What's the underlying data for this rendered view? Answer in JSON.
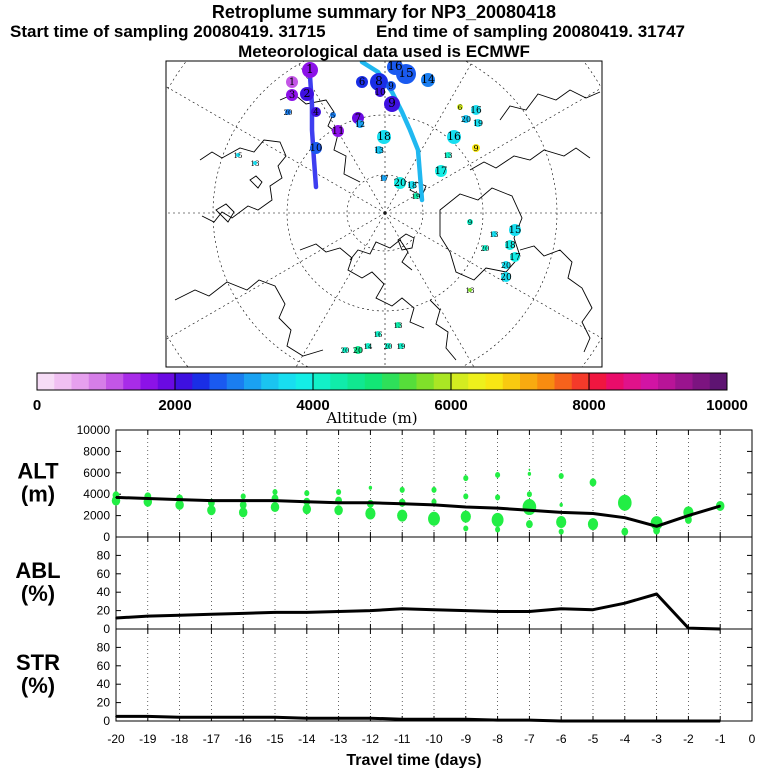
{
  "header": {
    "title": "Retroplume summary for NP3_20080418",
    "start_label": "Start time of sampling 20080419. 31715",
    "end_label": "End time of sampling 20080419. 31747",
    "met_label": "Meteorological data used is ECMWF"
  },
  "colorbar": {
    "ticks": [
      "0",
      "2000",
      "4000",
      "6000",
      "8000",
      "10000"
    ],
    "tick_values": [
      0,
      2000,
      4000,
      6000,
      8000,
      10000
    ],
    "label": "Altitude (m)",
    "colors": [
      "#f6dcf6",
      "#f0c0f2",
      "#e6a0ee",
      "#d67ee8",
      "#c356e6",
      "#a82ce8",
      "#8c12e8",
      "#6a0ae2",
      "#3e10e0",
      "#1a2ee6",
      "#1a5af0",
      "#1a7ef0",
      "#1aa2f2",
      "#1ac4f0",
      "#18def0",
      "#14eee6",
      "#12f0c8",
      "#10ecaa",
      "#10e890",
      "#12e676",
      "#2ee05a",
      "#56de3a",
      "#80e02a",
      "#aae624",
      "#d4ec20",
      "#eef01c",
      "#f8e614",
      "#f8ca10",
      "#f8aa10",
      "#f88c10",
      "#f6621c",
      "#f43a2a",
      "#f01640",
      "#ea0c6a",
      "#e0128a",
      "#d214a4",
      "#b81498",
      "#9a148e",
      "#7c1480",
      "#5e1472"
    ]
  },
  "map": {
    "description_labels": [
      "1",
      "2",
      "3",
      "4",
      "5",
      "6",
      "7",
      "8",
      "9",
      "10",
      "11",
      "12",
      "13",
      "14",
      "15",
      "16",
      "17",
      "18",
      "19",
      "20"
    ]
  },
  "chart_data": [
    {
      "type": "line",
      "panel": "ALT",
      "ylabel_line1": "ALT",
      "ylabel_line2": "(m)",
      "ylim": [
        0,
        10000
      ],
      "yticks": [
        "0",
        "2000",
        "4000",
        "6000",
        "8000",
        "10000"
      ],
      "ytick_values": [
        0,
        2000,
        4000,
        6000,
        8000,
        10000
      ],
      "x": [
        -20,
        -19,
        -18,
        -17,
        -16,
        -15,
        -14,
        -13,
        -12,
        -11,
        -10,
        -9,
        -8,
        -7,
        -6,
        -5,
        -4,
        -3,
        -2,
        -1
      ],
      "series": [
        {
          "name": "mean altitude",
          "values": [
            3700,
            3600,
            3500,
            3400,
            3400,
            3400,
            3300,
            3200,
            3200,
            3100,
            3000,
            2800,
            2700,
            2500,
            2300,
            2200,
            1800,
            1000,
            2000,
            2900
          ]
        }
      ],
      "scatter": [
        {
          "x": -20,
          "y": 3400,
          "s": 5
        },
        {
          "x": -20,
          "y": 3900,
          "s": 4
        },
        {
          "x": -19,
          "y": 3300,
          "s": 5
        },
        {
          "x": -19,
          "y": 3800,
          "s": 4
        },
        {
          "x": -18,
          "y": 3000,
          "s": 5
        },
        {
          "x": -18,
          "y": 3600,
          "s": 4
        },
        {
          "x": -17,
          "y": 2500,
          "s": 5
        },
        {
          "x": -17,
          "y": 3200,
          "s": 4
        },
        {
          "x": -16,
          "y": 2300,
          "s": 5
        },
        {
          "x": -16,
          "y": 3000,
          "s": 4
        },
        {
          "x": -16,
          "y": 3800,
          "s": 3
        },
        {
          "x": -15,
          "y": 2800,
          "s": 5
        },
        {
          "x": -15,
          "y": 3600,
          "s": 4
        },
        {
          "x": -15,
          "y": 4200,
          "s": 3
        },
        {
          "x": -14,
          "y": 2600,
          "s": 5
        },
        {
          "x": -14,
          "y": 3300,
          "s": 4
        },
        {
          "x": -14,
          "y": 4100,
          "s": 3
        },
        {
          "x": -13,
          "y": 2500,
          "s": 5
        },
        {
          "x": -13,
          "y": 3400,
          "s": 4
        },
        {
          "x": -13,
          "y": 4200,
          "s": 3
        },
        {
          "x": -12,
          "y": 2200,
          "s": 6
        },
        {
          "x": -12,
          "y": 3100,
          "s": 4
        },
        {
          "x": -12,
          "y": 4600,
          "s": 2
        },
        {
          "x": -11,
          "y": 2000,
          "s": 6
        },
        {
          "x": -11,
          "y": 3200,
          "s": 4
        },
        {
          "x": -11,
          "y": 4400,
          "s": 3
        },
        {
          "x": -10,
          "y": 1700,
          "s": 7
        },
        {
          "x": -10,
          "y": 3300,
          "s": 3
        },
        {
          "x": -10,
          "y": 4400,
          "s": 3
        },
        {
          "x": -9,
          "y": 1900,
          "s": 6
        },
        {
          "x": -9,
          "y": 800,
          "s": 3
        },
        {
          "x": -9,
          "y": 3800,
          "s": 3
        },
        {
          "x": -9,
          "y": 5500,
          "s": 3
        },
        {
          "x": -8,
          "y": 1600,
          "s": 7
        },
        {
          "x": -8,
          "y": 700,
          "s": 3
        },
        {
          "x": -8,
          "y": 3700,
          "s": 3
        },
        {
          "x": -8,
          "y": 5800,
          "s": 3
        },
        {
          "x": -7,
          "y": 2800,
          "s": 8
        },
        {
          "x": -7,
          "y": 1200,
          "s": 4
        },
        {
          "x": -7,
          "y": 4000,
          "s": 3
        },
        {
          "x": -7,
          "y": 5900,
          "s": 2
        },
        {
          "x": -7,
          "y": 6300,
          "s": 1
        },
        {
          "x": -6,
          "y": 1400,
          "s": 6
        },
        {
          "x": -6,
          "y": 500,
          "s": 3
        },
        {
          "x": -6,
          "y": 3000,
          "s": 2
        },
        {
          "x": -6,
          "y": 5700,
          "s": 3
        },
        {
          "x": -5,
          "y": 1200,
          "s": 6
        },
        {
          "x": -5,
          "y": 5100,
          "s": 4
        },
        {
          "x": -4,
          "y": 3200,
          "s": 8
        },
        {
          "x": -4,
          "y": 500,
          "s": 4
        },
        {
          "x": -3,
          "y": 1300,
          "s": 7
        },
        {
          "x": -3,
          "y": 600,
          "s": 4
        },
        {
          "x": -2,
          "y": 2300,
          "s": 6
        },
        {
          "x": -2,
          "y": 1600,
          "s": 4
        },
        {
          "x": -1,
          "y": 2900,
          "s": 5
        }
      ]
    },
    {
      "type": "line",
      "panel": "ABL",
      "ylabel_line1": "ABL",
      "ylabel_line2": "(%)",
      "ylim": [
        0,
        100
      ],
      "yticks": [
        "0",
        "20",
        "40",
        "60",
        "80"
      ],
      "ytick_values": [
        0,
        20,
        40,
        60,
        80
      ],
      "x": [
        -20,
        -19,
        -18,
        -17,
        -16,
        -15,
        -14,
        -13,
        -12,
        -11,
        -10,
        -9,
        -8,
        -7,
        -6,
        -5,
        -4,
        -3,
        -2,
        -1
      ],
      "series": [
        {
          "name": "ABL fraction",
          "values": [
            12,
            14,
            15,
            16,
            17,
            18,
            18,
            19,
            20,
            22,
            21,
            20,
            19,
            19,
            22,
            21,
            28,
            38,
            1,
            0
          ]
        }
      ]
    },
    {
      "type": "line",
      "panel": "STR",
      "ylabel_line1": "STR",
      "ylabel_line2": "(%)",
      "ylim": [
        0,
        100
      ],
      "yticks": [
        "0",
        "20",
        "40",
        "60",
        "80"
      ],
      "ytick_values": [
        0,
        20,
        40,
        60,
        80
      ],
      "x": [
        -20,
        -19,
        -18,
        -17,
        -16,
        -15,
        -14,
        -13,
        -12,
        -11,
        -10,
        -9,
        -8,
        -7,
        -6,
        -5,
        -4,
        -3,
        -2,
        -1
      ],
      "series": [
        {
          "name": "STR fraction",
          "values": [
            5,
            5,
            4,
            4,
            4,
            4,
            3,
            3,
            3,
            2,
            2,
            2,
            1,
            1,
            0,
            0,
            0,
            0,
            0,
            0
          ]
        }
      ],
      "xlabel": "Travel time (days)",
      "xticks": [
        "-20",
        "-19",
        "-18",
        "-17",
        "-16",
        "-15",
        "-14",
        "-13",
        "-12",
        "-11",
        "-10",
        "-9",
        "-8",
        "-7",
        "-6",
        "-5",
        "-4",
        "-3",
        "-2",
        "-1",
        "0"
      ],
      "xtick_values": [
        -20,
        -19,
        -18,
        -17,
        -16,
        -15,
        -14,
        -13,
        -12,
        -11,
        -10,
        -9,
        -8,
        -7,
        -6,
        -5,
        -4,
        -3,
        -2,
        -1,
        0
      ]
    }
  ]
}
